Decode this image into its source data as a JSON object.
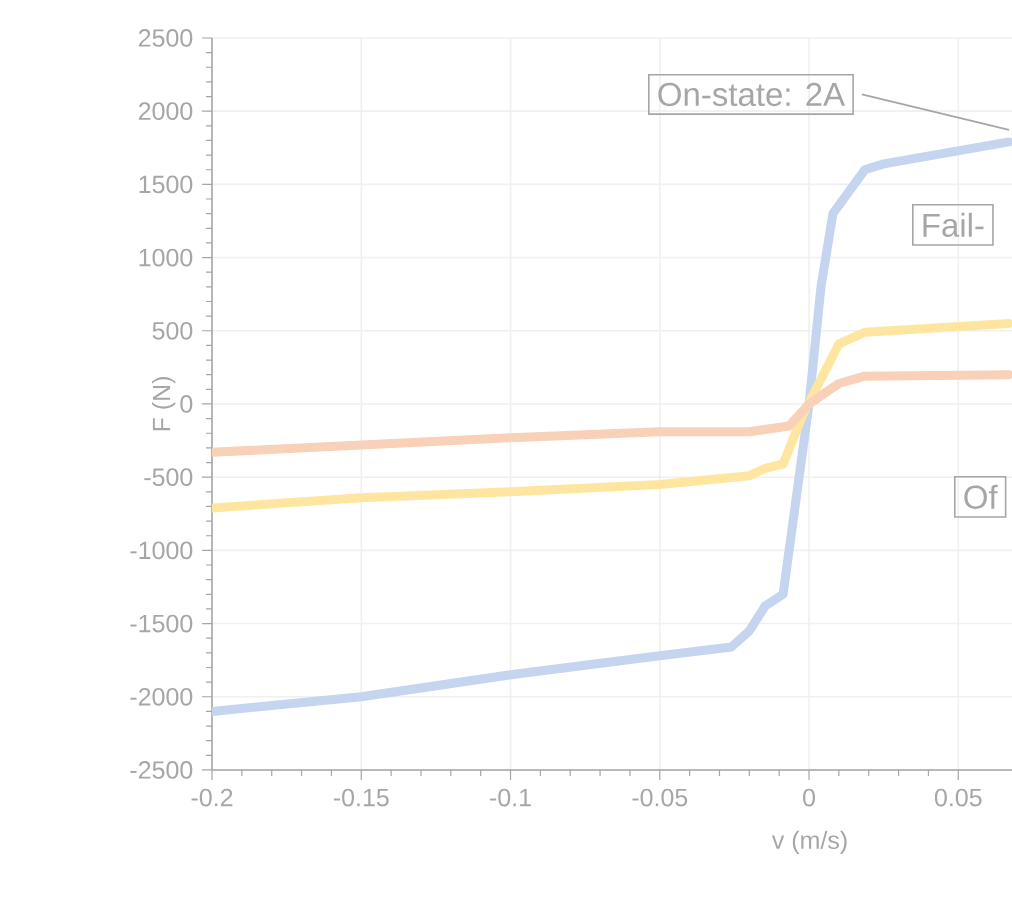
{
  "chart_data": {
    "type": "line",
    "xlabel": "v (m/s)",
    "ylabel": "F (N)",
    "xlim": [
      -0.2,
      0.068
    ],
    "ylim": [
      -2500,
      2500
    ],
    "xticks": [
      -0.2,
      -0.15,
      -0.1,
      -0.05,
      0,
      0.05
    ],
    "yticks": [
      -2500,
      -2000,
      -1500,
      -1000,
      -500,
      0,
      500,
      1000,
      1500,
      2000,
      2500
    ],
    "grid": true,
    "marker": "none",
    "line_style": "solid",
    "annotations": [
      {
        "text": "On-state: 2A",
        "x": 0.067,
        "y": 1790
      },
      "Fail-",
      "Of"
    ],
    "series": [
      {
        "color": "#c5d4ef",
        "x": [
          -0.2,
          -0.15,
          -0.1,
          -0.05,
          -0.026,
          -0.02,
          -0.0147,
          -0.0087,
          -0.004,
          0.0,
          0.004,
          0.008,
          0.0187,
          0.025,
          0.067
        ],
        "values": [
          -2100,
          -2000,
          -1850,
          -1720,
          -1660,
          -1550,
          -1380,
          -1300,
          -600,
          0,
          800,
          1300,
          1600,
          1640,
          1790
        ]
      },
      {
        "color": "#ffe6a0",
        "x": [
          -0.2,
          -0.15,
          -0.1,
          -0.05,
          -0.02,
          -0.0147,
          -0.0087,
          -0.002,
          0.01,
          0.0187,
          0.067
        ],
        "values": [
          -710,
          -640,
          -600,
          -550,
          -490,
          -440,
          -410,
          -70,
          410,
          490,
          550
        ]
      },
      {
        "color": "#f9d0b8",
        "x": [
          -0.2,
          -0.1,
          -0.05,
          -0.02,
          -0.0067,
          0.0,
          0.01,
          0.0187,
          0.067
        ],
        "values": [
          -330,
          -230,
          -190,
          -190,
          -150,
          0,
          140,
          190,
          200
        ]
      }
    ]
  }
}
